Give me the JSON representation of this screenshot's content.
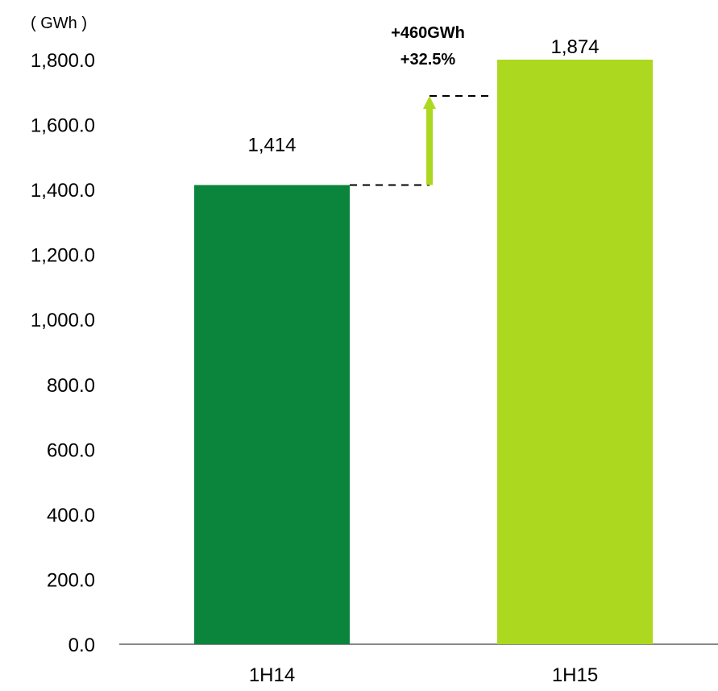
{
  "chart_data": {
    "type": "bar",
    "unit_label": "( GWh )",
    "categories": [
      "1H14",
      "1H15"
    ],
    "values": [
      1414,
      1874
    ],
    "value_labels": [
      "1,414",
      "1,874"
    ],
    "bar_colors": [
      "#0b853c",
      "#acd920"
    ],
    "ylim": [
      0,
      1800
    ],
    "yticks": [
      0,
      200,
      400,
      600,
      800,
      1000,
      1200,
      1400,
      1600,
      1800
    ],
    "ytick_labels": [
      "0.0",
      "200.0",
      "400.0",
      "600.0",
      "800.0",
      "1,000.0",
      "1,200.0",
      "1,400.0",
      "1,600.0",
      "1,800.0"
    ],
    "grid": false,
    "annotation": {
      "lines": [
        "+460GWh",
        "+32.5%"
      ],
      "arrow_color": "#acd920"
    }
  }
}
